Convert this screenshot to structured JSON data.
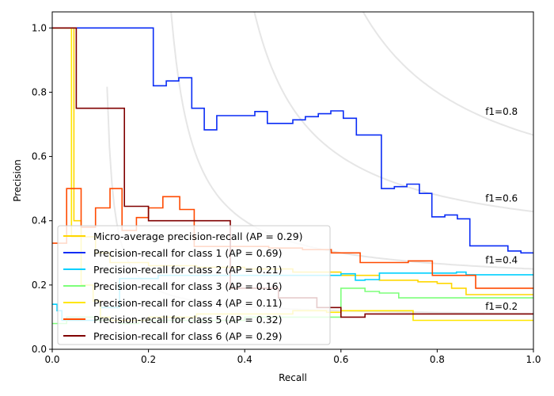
{
  "chart_data": {
    "type": "line",
    "title": "",
    "xlabel": "Recall",
    "ylabel": "Precision",
    "xlim": [
      0.0,
      1.0
    ],
    "ylim": [
      0.0,
      1.05
    ],
    "xticks": [
      "0.0",
      "0.2",
      "0.4",
      "0.6",
      "0.8",
      "1.0"
    ],
    "yticks": [
      "0.0",
      "0.2",
      "0.4",
      "0.6",
      "0.8",
      "1.0"
    ],
    "xtick_values": [
      0.0,
      0.2,
      0.4,
      0.6,
      0.8,
      1.0
    ],
    "ytick_values": [
      0.0,
      0.2,
      0.4,
      0.6,
      0.8,
      1.0
    ],
    "grid": false,
    "legend_position": "lower-left",
    "iso_f1": [
      {
        "f": 0.2,
        "label": "f1=0.2"
      },
      {
        "f": 0.4,
        "label": "f1=0.4"
      },
      {
        "f": 0.6,
        "label": "f1=0.6"
      },
      {
        "f": 0.8,
        "label": "f1=0.8"
      }
    ],
    "series": [
      {
        "name": "Micro-average precision-recall (AP = 0.29)",
        "color": "#ffd700",
        "recall": [
          0.0,
          0.045,
          0.045,
          0.06,
          0.06,
          0.09,
          0.09,
          0.12,
          0.12,
          0.2,
          0.2,
          0.3,
          0.3,
          0.4,
          0.4,
          0.5,
          0.5,
          0.6,
          0.6,
          0.68,
          0.68,
          0.76,
          0.76,
          0.8,
          0.8,
          0.83,
          0.83,
          0.86,
          0.86,
          1.0
        ],
        "precision": [
          1.0,
          1.0,
          0.4,
          0.4,
          0.35,
          0.35,
          0.3,
          0.3,
          0.27,
          0.27,
          0.26,
          0.26,
          0.255,
          0.255,
          0.25,
          0.25,
          0.24,
          0.24,
          0.23,
          0.23,
          0.215,
          0.215,
          0.21,
          0.21,
          0.205,
          0.205,
          0.19,
          0.19,
          0.17,
          0.17
        ]
      },
      {
        "name": "Precision-recall for class 1 (AP = 0.69)",
        "color": "#0a2cf5",
        "recall": [
          0.0,
          0.21,
          0.21,
          0.237,
          0.237,
          0.263,
          0.263,
          0.29,
          0.29,
          0.316,
          0.316,
          0.342,
          0.342,
          0.421,
          0.421,
          0.447,
          0.447,
          0.5,
          0.5,
          0.526,
          0.526,
          0.553,
          0.553,
          0.579,
          0.579,
          0.605,
          0.605,
          0.632,
          0.632,
          0.684,
          0.684,
          0.711,
          0.711,
          0.737,
          0.737,
          0.763,
          0.763,
          0.789,
          0.789,
          0.816,
          0.816,
          0.842,
          0.842,
          0.868,
          0.868,
          0.947,
          0.947,
          0.974,
          0.974,
          1.0
        ],
        "precision": [
          1.0,
          1.0,
          0.82,
          0.82,
          0.835,
          0.835,
          0.845,
          0.845,
          0.75,
          0.75,
          0.683,
          0.683,
          0.727,
          0.727,
          0.74,
          0.74,
          0.703,
          0.703,
          0.714,
          0.714,
          0.724,
          0.724,
          0.733,
          0.733,
          0.742,
          0.742,
          0.719,
          0.719,
          0.667,
          0.667,
          0.5,
          0.5,
          0.506,
          0.506,
          0.514,
          0.514,
          0.485,
          0.485,
          0.412,
          0.412,
          0.418,
          0.418,
          0.406,
          0.406,
          0.322,
          0.322,
          0.306,
          0.306,
          0.3,
          0.3
        ]
      },
      {
        "name": "Precision-recall for class 2 (AP = 0.21)",
        "color": "#00d0ff",
        "recall": [
          0.0,
          0.0,
          0.01,
          0.01,
          0.02,
          0.02,
          0.1,
          0.1,
          0.14,
          0.14,
          0.22,
          0.22,
          0.6,
          0.6,
          0.63,
          0.63,
          0.65,
          0.65,
          0.68,
          0.68,
          0.84,
          0.84,
          0.86,
          0.86,
          1.0
        ],
        "precision": [
          0.14,
          0.14,
          0.14,
          0.12,
          0.12,
          0.09,
          0.09,
          0.13,
          0.13,
          0.22,
          0.22,
          0.23,
          0.23,
          0.235,
          0.235,
          0.215,
          0.215,
          0.217,
          0.217,
          0.237,
          0.237,
          0.24,
          0.24,
          0.232,
          0.232
        ]
      },
      {
        "name": "Precision-recall for class 3 (AP = 0.16)",
        "color": "#7dff7a",
        "recall": [
          0.0,
          0.03,
          0.03,
          0.09,
          0.09,
          0.14,
          0.14,
          0.18,
          0.18,
          0.4,
          0.4,
          0.6,
          0.6,
          0.65,
          0.65,
          0.68,
          0.68,
          0.72,
          0.72,
          1.0
        ],
        "precision": [
          0.08,
          0.08,
          0.1,
          0.1,
          0.09,
          0.09,
          0.08,
          0.08,
          0.09,
          0.09,
          0.1,
          0.1,
          0.19,
          0.19,
          0.18,
          0.18,
          0.175,
          0.175,
          0.16,
          0.16
        ]
      },
      {
        "name": "Precision-recall for class 4 (AP = 0.11)",
        "color": "#ffe600",
        "recall": [
          0.0,
          0.04,
          0.04,
          0.06,
          0.06,
          0.085,
          0.085,
          0.1,
          0.1,
          0.12,
          0.12,
          0.2,
          0.2,
          0.3,
          0.3,
          0.5,
          0.5,
          0.57,
          0.57,
          0.6,
          0.6,
          0.65,
          0.65,
          0.75,
          0.75,
          1.0
        ],
        "precision": [
          1.0,
          1.0,
          0.35,
          0.35,
          0.2,
          0.2,
          0.15,
          0.15,
          0.1,
          0.1,
          0.09,
          0.09,
          0.1,
          0.1,
          0.11,
          0.11,
          0.12,
          0.12,
          0.115,
          0.115,
          0.12,
          0.12,
          0.12,
          0.12,
          0.09,
          0.09
        ]
      },
      {
        "name": "Precision-recall for class 5 (AP = 0.32)",
        "color": "#ff4a00",
        "recall": [
          0.0,
          0.03,
          0.03,
          0.06,
          0.06,
          0.09,
          0.09,
          0.12,
          0.12,
          0.145,
          0.145,
          0.175,
          0.175,
          0.2,
          0.2,
          0.23,
          0.23,
          0.265,
          0.265,
          0.295,
          0.295,
          0.45,
          0.45,
          0.52,
          0.52,
          0.58,
          0.58,
          0.64,
          0.64,
          0.74,
          0.74,
          0.79,
          0.79,
          0.88,
          0.88,
          1.0
        ],
        "precision": [
          0.33,
          0.33,
          0.5,
          0.5,
          0.38,
          0.38,
          0.44,
          0.44,
          0.5,
          0.5,
          0.37,
          0.37,
          0.41,
          0.41,
          0.44,
          0.44,
          0.475,
          0.475,
          0.435,
          0.435,
          0.32,
          0.32,
          0.315,
          0.315,
          0.31,
          0.31,
          0.3,
          0.3,
          0.27,
          0.27,
          0.275,
          0.275,
          0.23,
          0.23,
          0.19,
          0.19
        ]
      },
      {
        "name": "Precision-recall for class 6 (AP = 0.29)",
        "color": "#800000",
        "recall": [
          0.0,
          0.05,
          0.05,
          0.15,
          0.15,
          0.2,
          0.2,
          0.37,
          0.37,
          0.47,
          0.47,
          0.55,
          0.55,
          0.6,
          0.6,
          0.65,
          0.65,
          1.0
        ],
        "precision": [
          1.0,
          1.0,
          0.75,
          0.75,
          0.445,
          0.445,
          0.4,
          0.4,
          0.19,
          0.19,
          0.16,
          0.16,
          0.13,
          0.13,
          0.1,
          0.1,
          0.11,
          0.11
        ]
      }
    ]
  }
}
